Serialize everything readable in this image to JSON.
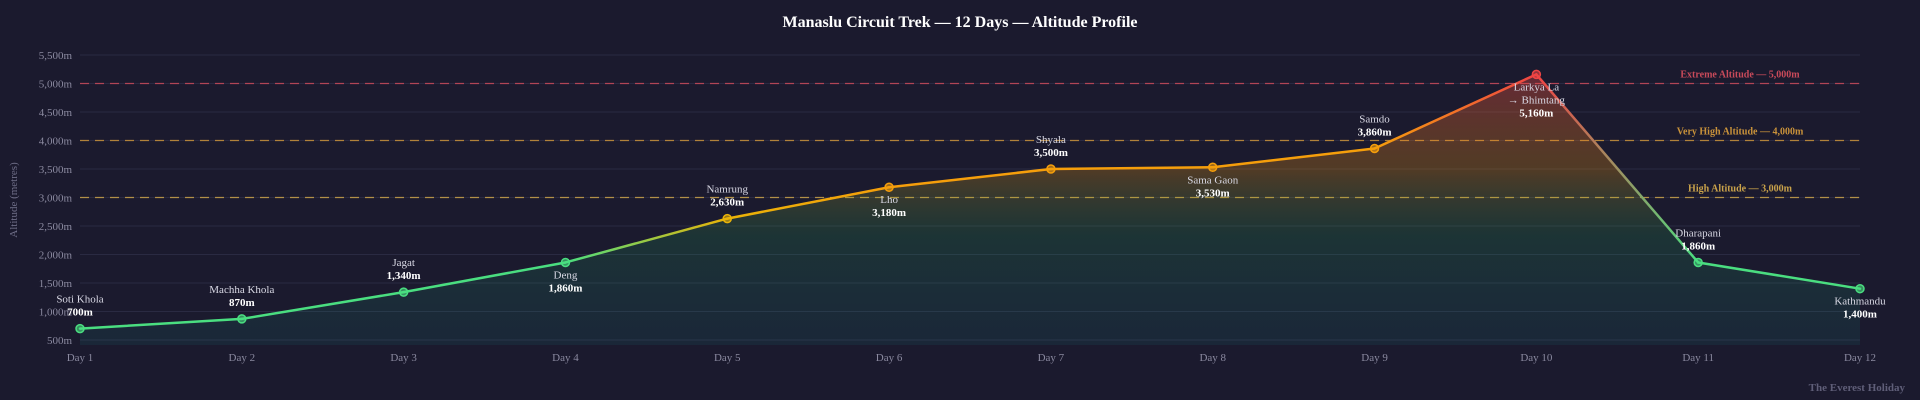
{
  "chart_data": {
    "type": "area",
    "title": "Manaslu Circuit Trek — 12 Days — Altitude Profile",
    "ylabel": "Altitude (metres)",
    "xlabel": "",
    "ylim": [
      500,
      5500
    ],
    "yticks": [
      "500m",
      "1,000m",
      "1,500m",
      "2,000m",
      "2,500m",
      "3,000m",
      "3,500m",
      "4,000m",
      "4,500m",
      "5,000m",
      "5,500m"
    ],
    "ytick_values": [
      500,
      1000,
      1500,
      2000,
      2500,
      3000,
      3500,
      4000,
      4500,
      5000,
      5500
    ],
    "grid": true,
    "categories": [
      "Day 1",
      "Day 2",
      "Day 3",
      "Day 4",
      "Day 5",
      "Day 6",
      "Day 7",
      "Day 8",
      "Day 9",
      "Day 10",
      "Day 11",
      "Day 12"
    ],
    "points": [
      {
        "name": "Soti Khola",
        "value": 700,
        "label": "700m"
      },
      {
        "name": "Machha Khola",
        "value": 870,
        "label": "870m"
      },
      {
        "name": "Jagat",
        "value": 1340,
        "label": "1,340m"
      },
      {
        "name": "Deng",
        "value": 1860,
        "label": "1,860m"
      },
      {
        "name": "Namrung",
        "value": 2630,
        "label": "2,630m"
      },
      {
        "name": "Lho",
        "value": 3180,
        "label": "3,180m"
      },
      {
        "name": "Shyala",
        "value": 3500,
        "label": "3,500m"
      },
      {
        "name": "Sama Gaon",
        "value": 3530,
        "label": "3,530m"
      },
      {
        "name": "Samdo",
        "value": 3860,
        "label": "3,860m"
      },
      {
        "name": "Larkya La|→ Bhimtang",
        "value": 5160,
        "label": "5,160m"
      },
      {
        "name": "Dharapani",
        "value": 1860,
        "label": "1,860m"
      },
      {
        "name": "Kathmandu",
        "value": 1400,
        "label": "1,400m"
      }
    ],
    "reference_lines": [
      {
        "value": 5000,
        "label": "Extreme Altitude — 5,000m",
        "color": "#c94a5a"
      },
      {
        "value": 4000,
        "label": "Very High Altitude — 4,000m",
        "color": "#c9923a"
      },
      {
        "value": 3000,
        "label": "High Altitude — 3,000m",
        "color": "#c9a24a"
      }
    ],
    "colors": {
      "low": "#4ade80",
      "mid": "#eab308",
      "high": "#f59e0b",
      "extreme": "#ef4444"
    }
  },
  "watermark": "The Everest Holiday"
}
